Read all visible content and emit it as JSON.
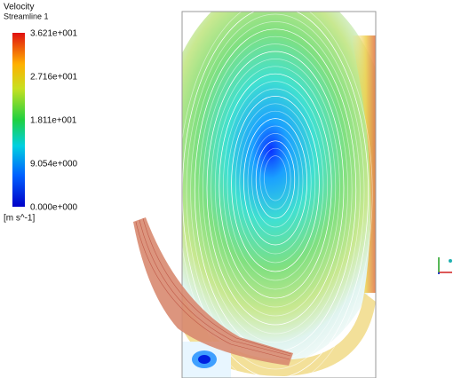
{
  "legend": {
    "title": "Velocity",
    "subtitle": "Streamline 1",
    "ticks": [
      "3.621e+001",
      "2.716e+001",
      "1.811e+001",
      "9.054e+000",
      "0.000e+000"
    ],
    "unit": "[m s^-1]"
  }
}
